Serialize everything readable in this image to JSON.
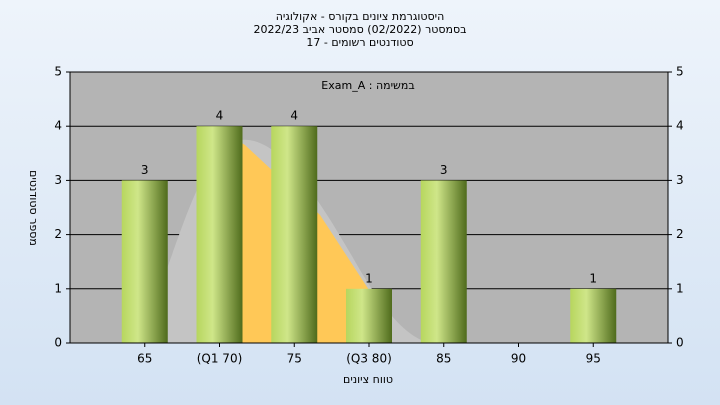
{
  "chart_data": {
    "type": "bar",
    "title": "היסטוגרמת ציונים בקורס - אקולוגיה",
    "subtitle": "בסמסטר  (02/2022)  סמסטר אביב 2022/23",
    "subtitle2": "סטודנטים רשומים - 17",
    "annotation": "Exam_A : במשימה",
    "y_label": "מספר סטודנטים",
    "x_label": "טווח ציונים",
    "categories": [
      "65",
      "(Q1 70)",
      "75",
      "(Q3 80)",
      "85",
      "90",
      "95"
    ],
    "values": [
      3,
      4,
      4,
      1,
      3,
      0,
      1
    ],
    "ylim": [
      0,
      5
    ],
    "yticks": [
      0,
      1,
      2,
      3,
      4,
      5
    ],
    "grid": true
  }
}
